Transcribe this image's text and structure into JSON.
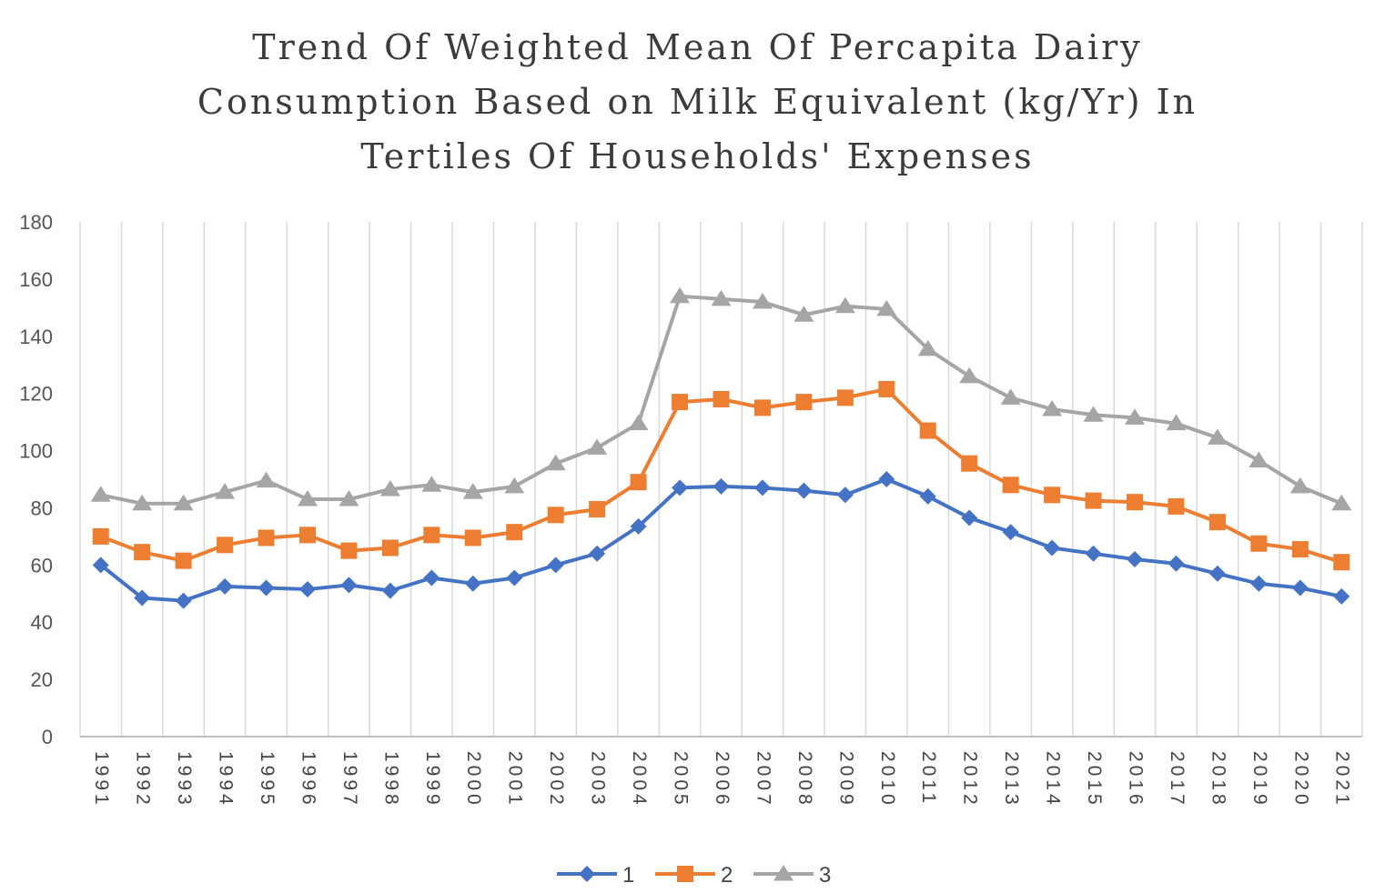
{
  "chart_data": {
    "type": "line",
    "title_lines": [
      "Trend Of Weighted Mean Of Percapita Dairy",
      "Consumption Based on Milk Equivalent (kg/Yr) In",
      "Tertiles Of Households' Expenses"
    ],
    "xlabel": "",
    "ylabel": "",
    "ylim": [
      0,
      180
    ],
    "yticks": [
      "0",
      "20",
      "40",
      "60",
      "80",
      "100",
      "120",
      "140",
      "160",
      "180"
    ],
    "categories": [
      "1991",
      "1992",
      "1993",
      "1994",
      "1995",
      "1996",
      "1997",
      "1998",
      "1999",
      "2000",
      "2001",
      "2002",
      "2003",
      "2004",
      "2005",
      "2006",
      "2007",
      "2008",
      "2009",
      "2010",
      "2011",
      "2012",
      "2013",
      "2014",
      "2015",
      "2016",
      "2017",
      "2018",
      "2019",
      "2020",
      "2021"
    ],
    "grid": "vertical",
    "legend_position": "bottom",
    "series": [
      {
        "name": "1",
        "color": "#4472C4",
        "marker": "diamond",
        "values": [
          60,
          48.5,
          47.5,
          52.5,
          52,
          51.5,
          53,
          51,
          55.5,
          53.5,
          55.5,
          60,
          64,
          73.5,
          87,
          87.5,
          87,
          86,
          84.5,
          90,
          84,
          76.5,
          71.5,
          66,
          64,
          62,
          60.5,
          57,
          53.5,
          52,
          49
        ]
      },
      {
        "name": "2",
        "color": "#ED7D31",
        "marker": "square",
        "values": [
          70,
          64.5,
          61.5,
          67,
          69.5,
          70.5,
          65,
          66,
          70.5,
          69.5,
          71.5,
          77.5,
          79.5,
          89,
          117,
          118,
          115,
          117,
          118.5,
          121.5,
          107,
          95.5,
          88,
          84.5,
          82.5,
          82,
          80.5,
          75,
          67.5,
          65.5,
          61
        ]
      },
      {
        "name": "3",
        "color": "#A5A5A5",
        "marker": "triangle",
        "values": [
          84.5,
          81.5,
          81.5,
          85.5,
          89.5,
          83,
          83,
          86.5,
          88,
          85.5,
          87.5,
          95.5,
          101,
          109.5,
          154,
          153,
          152,
          147.5,
          150.5,
          149.5,
          135.5,
          126,
          118.5,
          114.5,
          112.5,
          111.5,
          109.5,
          104.5,
          96.5,
          87.5,
          81.5
        ]
      }
    ]
  }
}
